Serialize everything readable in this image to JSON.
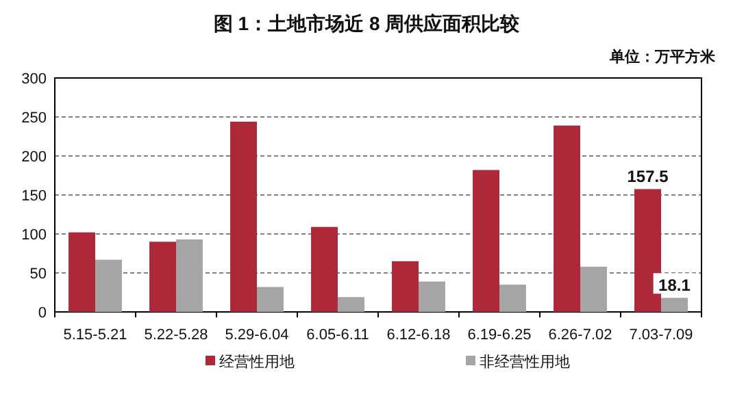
{
  "chart_data": {
    "type": "bar",
    "title": "图 1：土地市场近 8 周供应面积比较",
    "annotations": [
      "单位：万平方米"
    ],
    "categories": [
      "5.15-5.21",
      "5.22-5.28",
      "5.29-6.04",
      "6.05-6.11",
      "6.12-6.18",
      "6.19-6.25",
      "6.26-7.02",
      "7.03-7.09"
    ],
    "series": [
      {
        "name": "经营性用地",
        "color": "#ad2838",
        "values": [
          102,
          90,
          244,
          109,
          65,
          182,
          239,
          157.5
        ],
        "value_labels": [
          null,
          null,
          null,
          null,
          null,
          null,
          null,
          "157.5"
        ]
      },
      {
        "name": "非经营性用地",
        "color": "#a5a5a5",
        "values": [
          67,
          93,
          32,
          19,
          39,
          35,
          58,
          18.1
        ],
        "value_labels": [
          null,
          null,
          null,
          null,
          null,
          null,
          null,
          "18.1"
        ]
      }
    ],
    "ylim": [
      0,
      300
    ],
    "yticks": [
      0,
      50,
      100,
      150,
      200,
      250,
      300
    ],
    "grid": "y",
    "legend": "bottom"
  }
}
